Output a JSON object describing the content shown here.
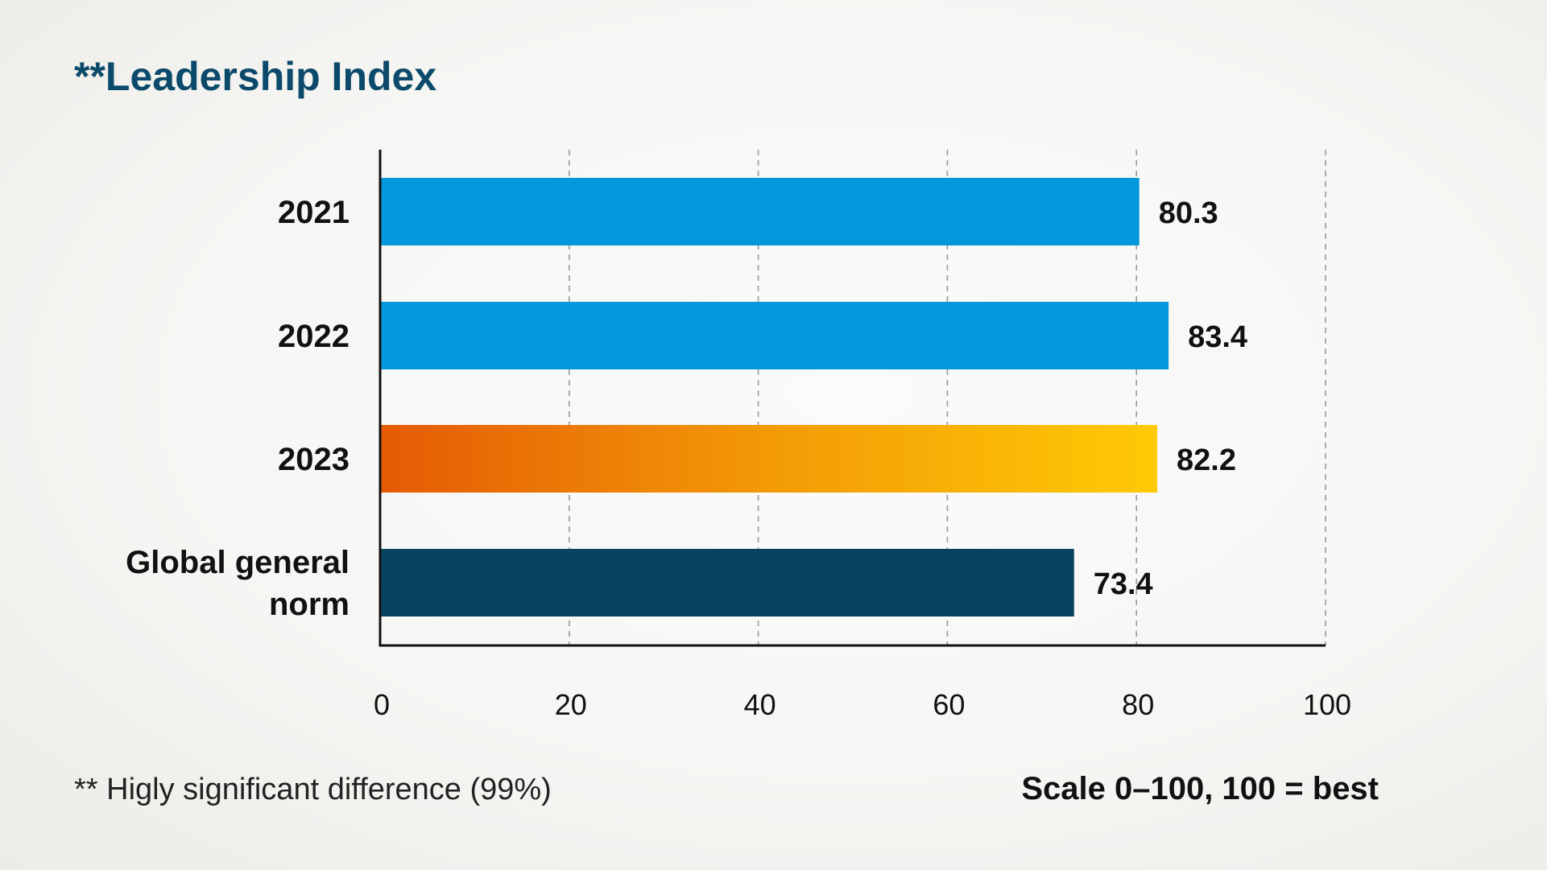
{
  "chart_data": {
    "type": "bar",
    "orientation": "horizontal",
    "title": "**Leadership Index",
    "categories": [
      [
        "2021"
      ],
      [
        "2022"
      ],
      [
        "2023"
      ],
      [
        "Global general",
        "norm"
      ]
    ],
    "values": [
      80.3,
      83.4,
      82.2,
      73.4
    ],
    "value_labels": [
      "80.3",
      "83.4",
      "82.2",
      "73.4"
    ],
    "bar_styles": [
      "blue",
      "blue",
      "orange-gradient",
      "navy"
    ],
    "xlim": [
      0,
      100
    ],
    "xticks": [
      0,
      20,
      40,
      60,
      80,
      100
    ],
    "xtick_labels": [
      "0",
      "20",
      "40",
      "60",
      "80",
      "100"
    ],
    "grid": "vertical dashed",
    "footnote": "** Higly significant difference (99%)",
    "scale_note": "Scale 0–100, 100 =  best"
  },
  "colors": {
    "title": "#0c4a6b",
    "blue": "#0398dc",
    "navy": "#06445f",
    "gradient_start": "#e55a05",
    "gradient_mid": "#f39a06",
    "gradient_end": "#ffca05",
    "axis": "#111111",
    "grid": "#9a9a9a"
  }
}
